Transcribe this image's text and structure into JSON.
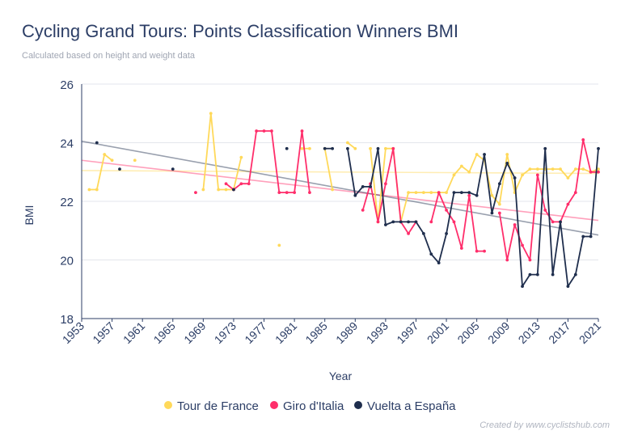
{
  "title": "Cycling Grand Tours: Points Classification Winners BMI",
  "subtitle": "Calculated based on height and weight data",
  "credit": "Created by www.cyclistshub.com",
  "chart_data": {
    "type": "line",
    "xlabel": "Year",
    "ylabel": "BMI",
    "xlim": [
      1953,
      2021
    ],
    "ylim": [
      18,
      26
    ],
    "yticks": [
      "18",
      "20",
      "22",
      "24",
      "26"
    ],
    "xticks": [
      "1953",
      "1957",
      "1961",
      "1965",
      "1969",
      "1973",
      "1977",
      "1981",
      "1985",
      "1989",
      "1993",
      "1997",
      "2001",
      "2005",
      "2009",
      "2013",
      "2017",
      "2021"
    ],
    "grid": "horizontal",
    "legend_position": "bottom",
    "series": [
      {
        "name": "Tour de France",
        "color": "#ffd95a",
        "points": [
          [
            1954,
            22.4
          ],
          [
            1955,
            22.4
          ],
          [
            1956,
            23.6
          ],
          [
            1957,
            23.4
          ],
          [
            1959,
            null
          ],
          [
            1960,
            23.4
          ],
          [
            1964,
            null
          ],
          [
            1966,
            null
          ],
          [
            1969,
            22.4
          ],
          [
            1970,
            25.0
          ],
          [
            1971,
            22.4
          ],
          [
            1972,
            22.4
          ],
          [
            1973,
            22.4
          ],
          [
            1974,
            23.5
          ],
          [
            1975,
            null
          ],
          [
            1979,
            20.5
          ],
          [
            1980,
            null
          ],
          [
            1982,
            23.8
          ],
          [
            1983,
            23.8
          ],
          [
            1984,
            null
          ],
          [
            1985,
            23.8
          ],
          [
            1986,
            22.4
          ],
          [
            1987,
            null
          ],
          [
            1988,
            24.0
          ],
          [
            1989,
            23.8
          ],
          [
            1990,
            null
          ],
          [
            1991,
            23.8
          ],
          [
            1992,
            21.3
          ],
          [
            1993,
            23.8
          ],
          [
            1994,
            23.8
          ],
          [
            1995,
            21.3
          ],
          [
            1996,
            22.3
          ],
          [
            1997,
            22.3
          ],
          [
            1998,
            22.3
          ],
          [
            1999,
            22.3
          ],
          [
            2000,
            22.3
          ],
          [
            2001,
            22.3
          ],
          [
            2002,
            22.9
          ],
          [
            2003,
            23.2
          ],
          [
            2004,
            23.0
          ],
          [
            2005,
            23.6
          ],
          [
            2006,
            23.4
          ],
          [
            2007,
            22.2
          ],
          [
            2008,
            21.9
          ],
          [
            2009,
            23.6
          ],
          [
            2010,
            22.3
          ],
          [
            2011,
            22.9
          ],
          [
            2012,
            23.1
          ],
          [
            2013,
            23.1
          ],
          [
            2014,
            23.1
          ],
          [
            2015,
            23.1
          ],
          [
            2016,
            23.1
          ],
          [
            2017,
            22.8
          ],
          [
            2018,
            23.1
          ],
          [
            2019,
            23.1
          ],
          [
            2020,
            23.0
          ],
          [
            2021,
            23.1
          ]
        ]
      },
      {
        "name": "Giro d'Italia",
        "color": "#ff2e6b",
        "points": [
          [
            1968,
            22.3
          ],
          [
            1969,
            null
          ],
          [
            1972,
            22.6
          ],
          [
            1973,
            22.4
          ],
          [
            1974,
            22.6
          ],
          [
            1975,
            22.6
          ],
          [
            1976,
            24.4
          ],
          [
            1977,
            24.4
          ],
          [
            1978,
            24.4
          ],
          [
            1979,
            22.3
          ],
          [
            1980,
            22.3
          ],
          [
            1981,
            22.3
          ],
          [
            1982,
            24.4
          ],
          [
            1983,
            22.3
          ],
          [
            1984,
            null
          ],
          [
            1990,
            21.7
          ],
          [
            1991,
            22.6
          ],
          [
            1992,
            21.3
          ],
          [
            1993,
            22.6
          ],
          [
            1994,
            23.8
          ],
          [
            1995,
            21.3
          ],
          [
            1996,
            20.9
          ],
          [
            1997,
            21.3
          ],
          [
            1998,
            null
          ],
          [
            1999,
            21.3
          ],
          [
            2000,
            22.3
          ],
          [
            2001,
            21.7
          ],
          [
            2002,
            21.3
          ],
          [
            2003,
            20.4
          ],
          [
            2004,
            22.2
          ],
          [
            2005,
            20.3
          ],
          [
            2006,
            20.3
          ],
          [
            2007,
            null
          ],
          [
            2008,
            21.6
          ],
          [
            2009,
            20.0
          ],
          [
            2010,
            21.2
          ],
          [
            2011,
            20.5
          ],
          [
            2012,
            20.0
          ],
          [
            2013,
            22.9
          ],
          [
            2014,
            21.7
          ],
          [
            2015,
            21.3
          ],
          [
            2016,
            21.3
          ],
          [
            2017,
            21.9
          ],
          [
            2018,
            22.3
          ],
          [
            2019,
            24.1
          ],
          [
            2020,
            23.0
          ],
          [
            2021,
            23.0
          ]
        ]
      },
      {
        "name": "Vuelta a España",
        "color": "#1f2e4d",
        "points": [
          [
            1955,
            24.0
          ],
          [
            1956,
            null
          ],
          [
            1958,
            23.1
          ],
          [
            1959,
            null
          ],
          [
            1965,
            23.1
          ],
          [
            1966,
            null
          ],
          [
            1973,
            22.4
          ],
          [
            1974,
            null
          ],
          [
            1980,
            23.8
          ],
          [
            1981,
            null
          ],
          [
            1985,
            23.8
          ],
          [
            1986,
            23.8
          ],
          [
            1987,
            null
          ],
          [
            1988,
            23.8
          ],
          [
            1989,
            22.2
          ],
          [
            1990,
            22.5
          ],
          [
            1991,
            22.5
          ],
          [
            1992,
            23.8
          ],
          [
            1993,
            21.2
          ],
          [
            1994,
            21.3
          ],
          [
            1995,
            21.3
          ],
          [
            1996,
            21.3
          ],
          [
            1997,
            21.3
          ],
          [
            1998,
            20.9
          ],
          [
            1999,
            20.2
          ],
          [
            2000,
            19.9
          ],
          [
            2001,
            20.9
          ],
          [
            2002,
            22.3
          ],
          [
            2003,
            22.3
          ],
          [
            2004,
            22.3
          ],
          [
            2005,
            22.2
          ],
          [
            2006,
            23.6
          ],
          [
            2007,
            21.6
          ],
          [
            2008,
            22.6
          ],
          [
            2009,
            23.3
          ],
          [
            2010,
            22.8
          ],
          [
            2011,
            19.1
          ],
          [
            2012,
            19.5
          ],
          [
            2013,
            19.5
          ],
          [
            2014,
            23.8
          ],
          [
            2015,
            19.5
          ],
          [
            2016,
            21.3
          ],
          [
            2017,
            19.1
          ],
          [
            2018,
            19.5
          ],
          [
            2019,
            20.8
          ],
          [
            2020,
            20.8
          ],
          [
            2021,
            23.8
          ]
        ]
      }
    ],
    "trendlines": [
      {
        "name": "Tour de France",
        "color": "#ffd95a",
        "from": [
          1953,
          23.05
        ],
        "to": [
          2021,
          22.95
        ]
      },
      {
        "name": "Giro d'Italia",
        "color": "#ff2e6b",
        "from": [
          1953,
          23.4
        ],
        "to": [
          2021,
          21.35
        ]
      },
      {
        "name": "Vuelta a España",
        "color": "#1f2e4d",
        "from": [
          1953,
          24.05
        ],
        "to": [
          2021,
          20.85
        ]
      }
    ]
  }
}
